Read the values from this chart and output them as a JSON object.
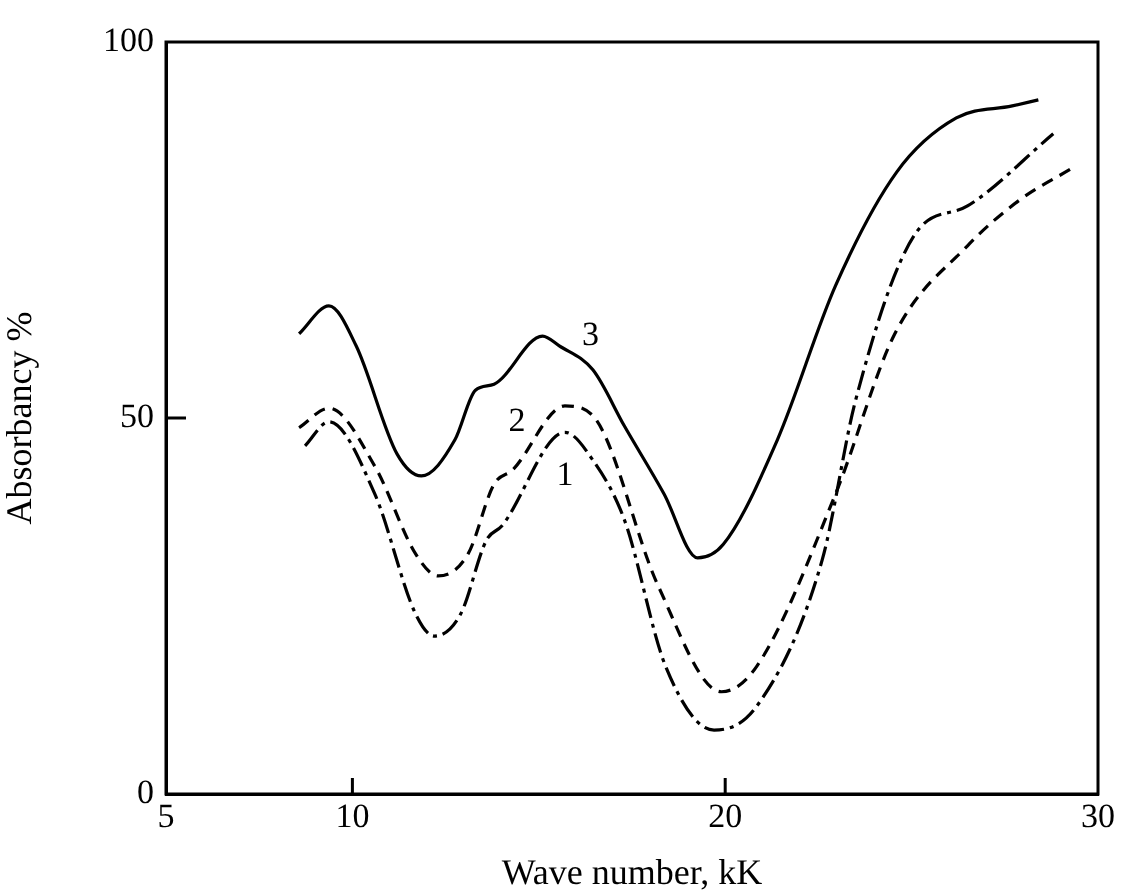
{
  "chart_data": {
    "type": "line",
    "xlabel": "Wave number, kK",
    "ylabel": "Absorbancy %",
    "xlim": [
      5,
      30
    ],
    "xticks": [
      5,
      10,
      20,
      30
    ],
    "ylim": [
      0,
      100
    ],
    "yticks": [
      0,
      50,
      100
    ],
    "grid": false,
    "legend": false,
    "marker": "none",
    "series": [
      {
        "type": "line",
        "name": "1",
        "color": "#000000",
        "line_style": "dashdot",
        "x": [
          8.73,
          9.37,
          10.6,
          11.7,
          12.2,
          12.9,
          13.6,
          14.0,
          15.7,
          16.45,
          17.3,
          18.4,
          19.7,
          20.85,
          22.6,
          23.5,
          25.1,
          26.5,
          28.8
        ],
        "values": [
          46.3,
          49.5,
          39.9,
          23.9,
          21.0,
          23.9,
          33.8,
          35.6,
          48.1,
          44.4,
          36.4,
          17.0,
          8.5,
          11.7,
          31.1,
          52.4,
          74.5,
          78.2,
          87.8
        ]
      },
      {
        "type": "line",
        "name": "2",
        "color": "#000000",
        "line_style": "dashed",
        "x": [
          8.57,
          9.37,
          10.6,
          11.7,
          12.3,
          13.1,
          13.8,
          14.3,
          15.7,
          16.45,
          18.2,
          19.9,
          20.85,
          22.96,
          24.55,
          26.5,
          27.9,
          29.3
        ],
        "values": [
          48.7,
          51.3,
          43.6,
          31.9,
          29.0,
          31.9,
          41.2,
          43.1,
          51.6,
          50.3,
          27.7,
          13.6,
          17.0,
          39.9,
          61.2,
          72.9,
          79.0,
          83.2
        ]
      },
      {
        "type": "line",
        "name": "3",
        "color": "#000000",
        "line_style": "solid",
        "x": [
          8.57,
          9.37,
          10.1,
          11.2,
          11.85,
          12.75,
          13.3,
          13.8,
          15.1,
          15.55,
          16.45,
          17.3,
          18.36,
          19.26,
          19.95,
          21.4,
          22.96,
          24.6,
          26.2,
          27.7,
          28.4
        ],
        "values": [
          61.2,
          64.9,
          59.6,
          45.2,
          42.3,
          47.1,
          53.7,
          54.5,
          60.9,
          59.6,
          56.4,
          48.9,
          39.9,
          31.4,
          33.2,
          47.1,
          67.6,
          82.7,
          89.9,
          91.5,
          92.3
        ]
      }
    ]
  }
}
